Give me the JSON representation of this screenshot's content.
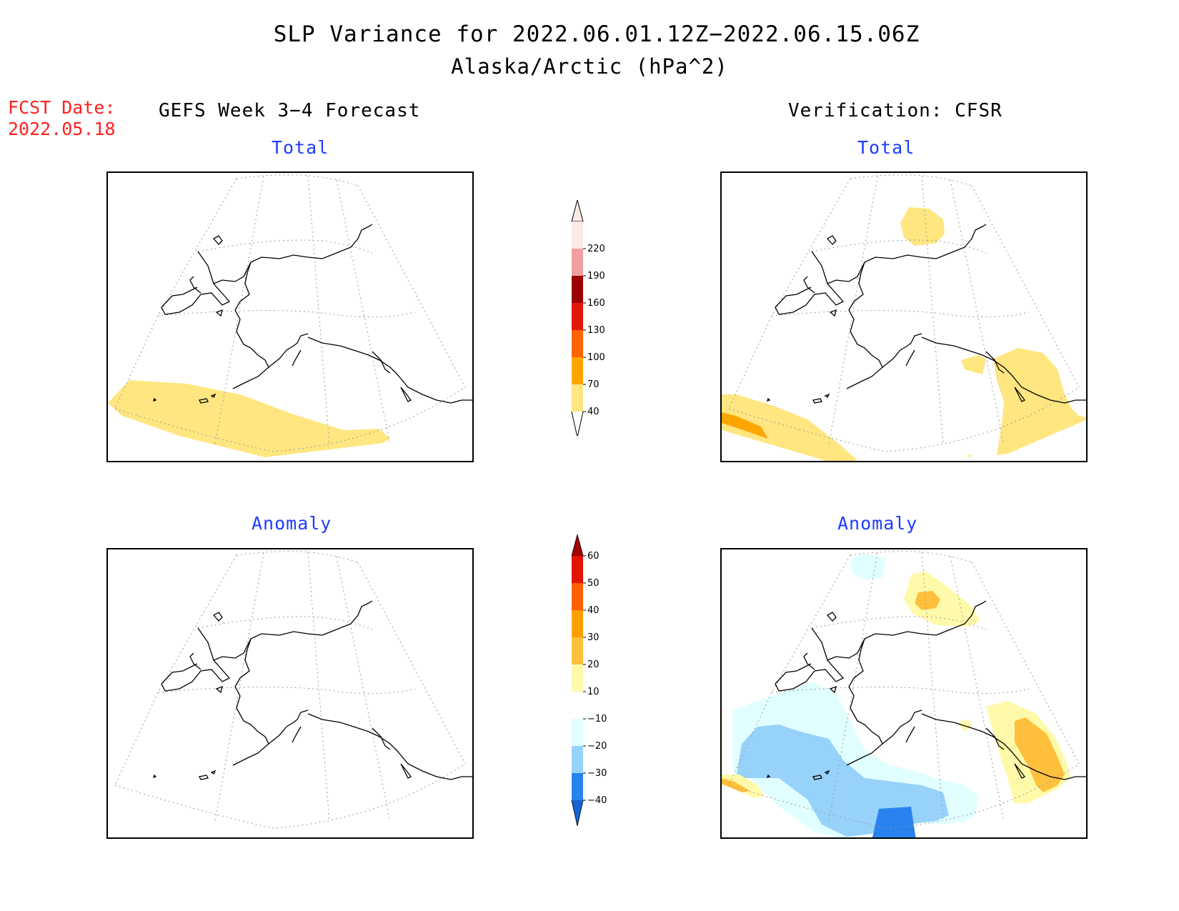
{
  "header": {
    "title": "SLP Variance for 2022.06.01.12Z−2022.06.15.06Z",
    "subtitle": "Alaska/Arctic (hPa^2)",
    "fcst_label": "FCST Date:",
    "fcst_date": "2022.05.18"
  },
  "columns": {
    "left": "GEFS Week 3−4 Forecast",
    "right": "Verification: CFSR"
  },
  "panels": {
    "forecast_total": "Total",
    "verification_total": "Total",
    "forecast_anomaly": "Anomaly",
    "verification_anomaly": "Anomaly"
  },
  "colorbar_total": {
    "levels": [
      "40",
      "70",
      "100",
      "130",
      "160",
      "190",
      "220"
    ],
    "colors": [
      "#ffe680",
      "#ffa500",
      "#ff6400",
      "#e01a0a",
      "#9a0000",
      "#f0a0a0",
      "#fde8e8"
    ],
    "lower_color": "#ffffff"
  },
  "colorbar_anomaly": {
    "levels": [
      "−40",
      "−30",
      "−20",
      "−10",
      "10",
      "20",
      "30",
      "40",
      "50",
      "60"
    ],
    "colors": [
      "#1464d2",
      "#2882f0",
      "#96d2fa",
      "#e1ffff",
      "#ffffff",
      "#fffaaa",
      "#ffc03c",
      "#ffa000",
      "#ff6000",
      "#e11400",
      "#a50000"
    ],
    "lower_color": "#1464d2"
  },
  "colors": {
    "yellow": "#ffe680",
    "orange": "#ffa500",
    "light_blue": "#e1ffff",
    "medium_blue": "#96d2fa",
    "dark_blue": "#2882f0",
    "pale_yellow": "#fffaaa",
    "light_orange": "#ffc03c"
  }
}
